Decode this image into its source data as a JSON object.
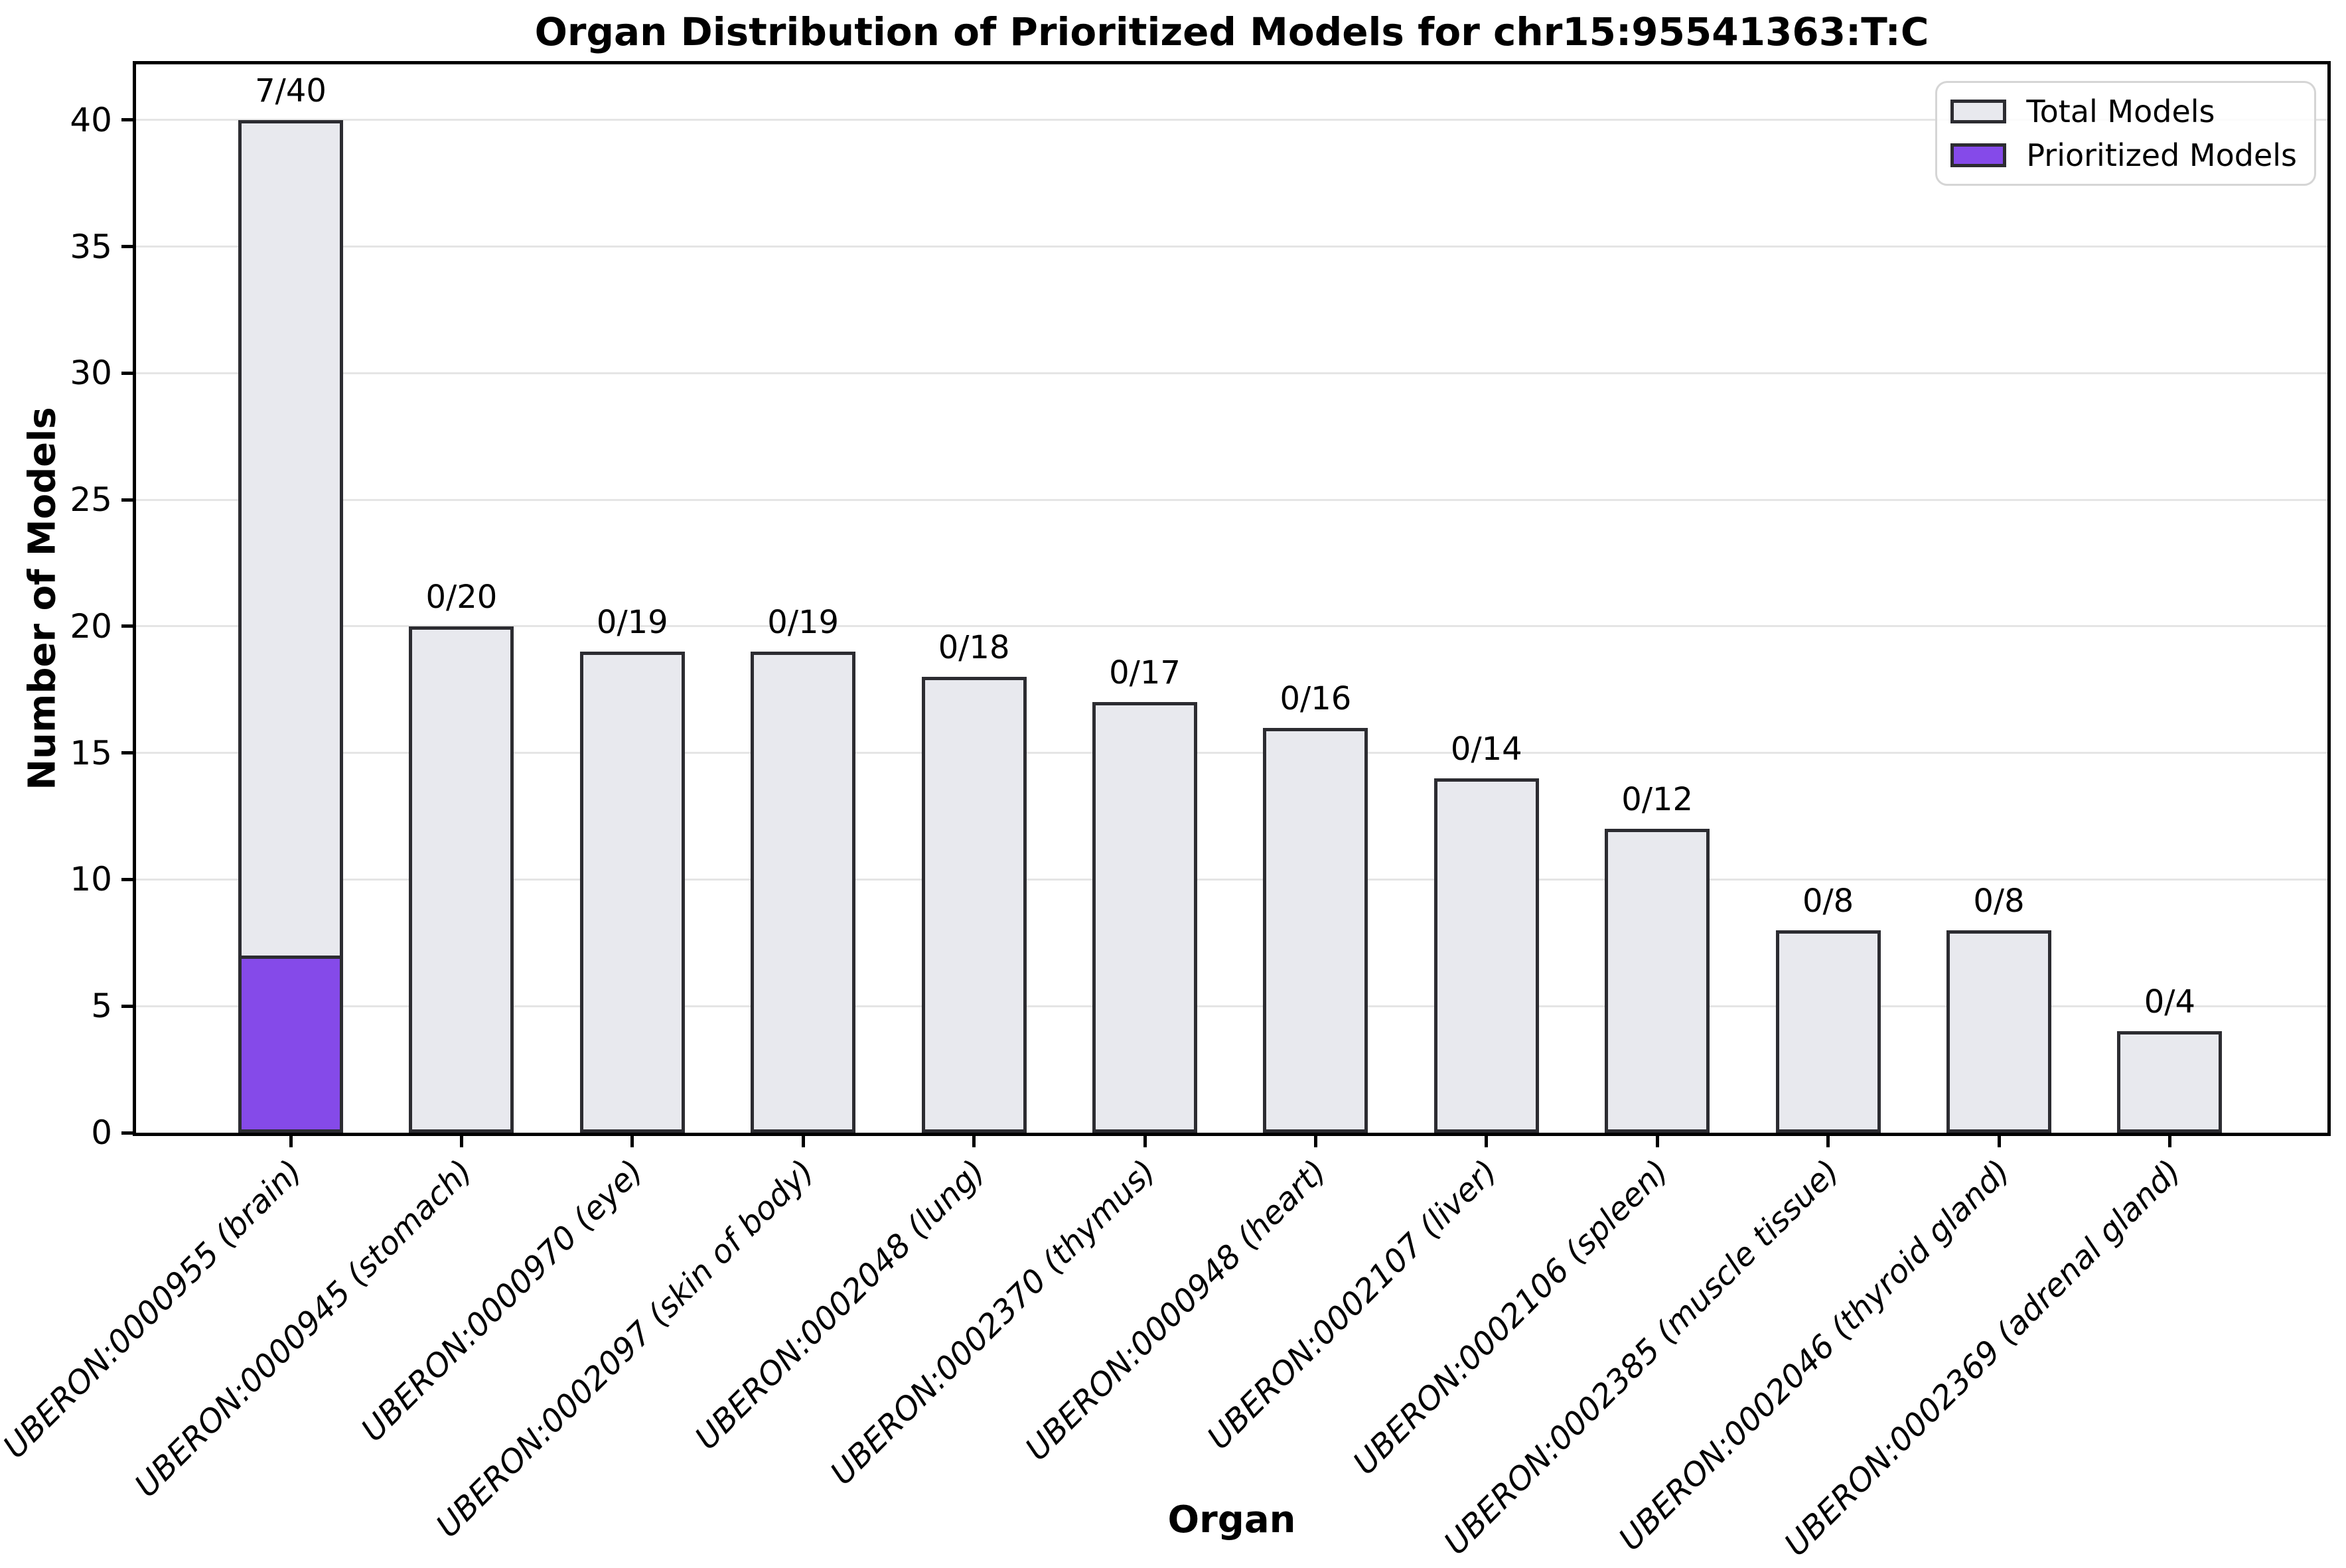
{
  "title": "Organ Distribution of Prioritized Models for chr15:95541363:T:C",
  "legend": {
    "total": "Total Models",
    "prioritized": "Prioritized Models"
  },
  "axes": {
    "x_label": "Organ",
    "y_label": "Number of Models",
    "y_ticks": [
      0,
      5,
      10,
      15,
      20,
      25,
      30,
      35,
      40
    ]
  },
  "colors": {
    "total_fill": "#e8e9ee",
    "prioritized_fill": "#854ae9",
    "bar_edge": "#2c2c31",
    "gridline": "#e5e5e5"
  },
  "chart_data": {
    "type": "bar",
    "title": "Organ Distribution of Prioritized Models for chr15:95541363:T:C",
    "xlabel": "Organ",
    "ylabel": "Number of Models",
    "ylim": [
      0,
      42.2
    ],
    "grid": true,
    "legend_position": "upper right",
    "legend_entries": [
      "Total Models",
      "Prioritized Models"
    ],
    "categories": [
      "UBERON:0000955 (brain)",
      "UBERON:0000945 (stomach)",
      "UBERON:0000970 (eye)",
      "UBERON:0002097 (skin of body)",
      "UBERON:0002048 (lung)",
      "UBERON:0002370 (thymus)",
      "UBERON:0000948 (heart)",
      "UBERON:0002107 (liver)",
      "UBERON:0002106 (spleen)",
      "UBERON:0002385 (muscle tissue)",
      "UBERON:0002046 (thyroid gland)",
      "UBERON:0002369 (adrenal gland)"
    ],
    "series": [
      {
        "name": "Total Models",
        "values": [
          40,
          20,
          19,
          19,
          18,
          17,
          16,
          14,
          12,
          8,
          8,
          4
        ]
      },
      {
        "name": "Prioritized Models",
        "values": [
          7,
          0,
          0,
          0,
          0,
          0,
          0,
          0,
          0,
          0,
          0,
          0
        ]
      }
    ],
    "bar_labels": [
      "7/40",
      "0/20",
      "0/19",
      "0/19",
      "0/18",
      "0/17",
      "0/16",
      "0/14",
      "0/12",
      "0/8",
      "0/8",
      "0/4"
    ]
  }
}
